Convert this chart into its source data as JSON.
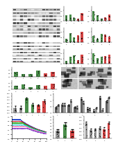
{
  "bg_color": "#ffffff",
  "blot_bg": "#d8d8d8",
  "blot_band_light": "#f0f0f0",
  "blot_band_dark": "#303030",
  "bar_green": "#2a7a2a",
  "bar_red": "#cc2222",
  "bar_gray": "#888888",
  "bar_dark_gray": "#444444",
  "dot_color": "#111111",
  "line_colors": [
    "#2244cc",
    "#cc2222",
    "#22aa22",
    "#22cccc",
    "#ff88bb",
    "#8844cc"
  ],
  "micro_bg": "#888888"
}
